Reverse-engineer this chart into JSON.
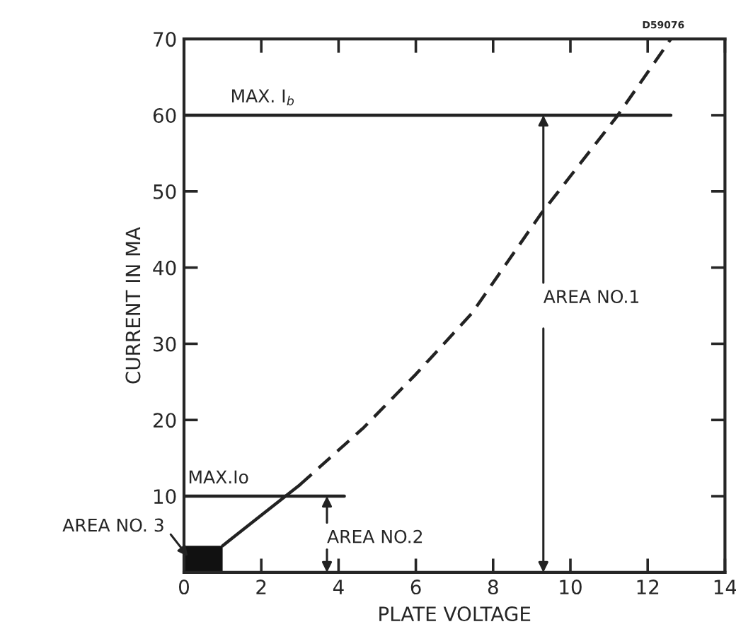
{
  "chart_data": {
    "type": "line",
    "xlabel": "PLATE VOLTAGE",
    "ylabel": "CURRENT IN MA",
    "xlim": [
      0,
      14
    ],
    "ylim": [
      0,
      70
    ],
    "xticks": [
      0,
      2,
      4,
      6,
      8,
      10,
      12,
      14
    ],
    "yticks": [
      {
        "value": 0,
        "label": null
      },
      10,
      20,
      30,
      40,
      50,
      60,
      70
    ],
    "grid": false,
    "series": [
      {
        "color": "#222222",
        "line_style": "solid",
        "x": [
          1,
          2,
          3
        ],
        "values": [
          3.5,
          7.5,
          11.5
        ]
      },
      {
        "color": "#222222",
        "line_style": "dashed",
        "x": [
          3,
          4.65,
          6,
          7.45,
          9.23,
          11.2,
          12.6
        ],
        "values": [
          11.5,
          19,
          26,
          34,
          47,
          59.8,
          70
        ]
      },
      {
        "color": "#222222",
        "line_style": "solid",
        "x": [
          0,
          12.6
        ],
        "values": [
          60,
          60
        ]
      },
      {
        "color": "#222222",
        "line_style": "solid",
        "x": [
          0,
          4.15
        ],
        "values": [
          10,
          10
        ]
      },
      {
        "type": "area",
        "color": "#111111",
        "x": [
          0,
          1
        ],
        "values": [
          3.5,
          3.5
        ]
      }
    ],
    "annotations": [
      {
        "text": "MAX. I$_{b}$",
        "x": 1.2,
        "y": 60
      },
      {
        "text": "MAX.Io",
        "x": 0.1,
        "y": 10
      },
      {
        "text": "AREA NO.1",
        "x": 9.3,
        "y": 60
      },
      {
        "text": "AREA NO.2",
        "x": 3.7,
        "y": 10
      },
      {
        "text": "AREA NO. 3",
        "x": 0.5,
        "y": 3.5
      },
      "D59076"
    ]
  }
}
